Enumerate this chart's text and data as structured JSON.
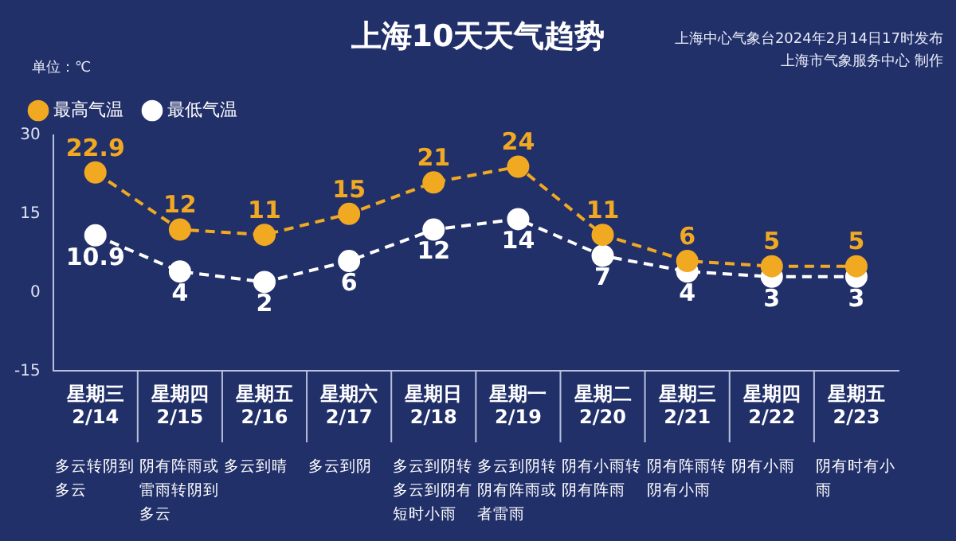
{
  "chart_data": {
    "type": "line",
    "title": "上海10天天气趋势",
    "ylabel": "单位：℃",
    "categories": [
      "星期三 2/14",
      "星期四 2/15",
      "星期五 2/16",
      "星期六 2/17",
      "星期日 2/18",
      "星期一 2/19",
      "星期二 2/20",
      "星期三 2/21",
      "星期四 2/22",
      "星期五 2/23"
    ],
    "series": [
      {
        "name": "最高气温",
        "color": "#f2a922",
        "values": [
          22.9,
          12,
          11,
          15,
          21,
          24,
          11,
          6,
          5,
          5
        ]
      },
      {
        "name": "最低气温",
        "color": "#ffffff",
        "values": [
          10.9,
          4,
          2,
          6,
          12,
          14,
          7,
          4,
          3,
          3
        ]
      }
    ],
    "ylim": [
      -15,
      30
    ],
    "yticks": [
      -15,
      0,
      15,
      30
    ],
    "grid": false,
    "legend": "top left",
    "marker": "circle",
    "line_style": "dashed",
    "data_labels": true,
    "annotations": [
      "上海中心气象台2024年2月14日17时发布",
      "上海市气象服务中心 制作",
      "多云转阴到多云",
      "阴有阵雨或雷雨转阴到多云",
      "多云到晴",
      "多云到阴",
      "多云到阴转多云到阴有短时小雨",
      "多云到阴转阴有阵雨或者雷雨",
      "阴有小雨转阴有阵雨",
      "阴有阵雨转阴有小雨",
      "阴有小雨",
      "阴有时有小雨"
    ]
  }
}
